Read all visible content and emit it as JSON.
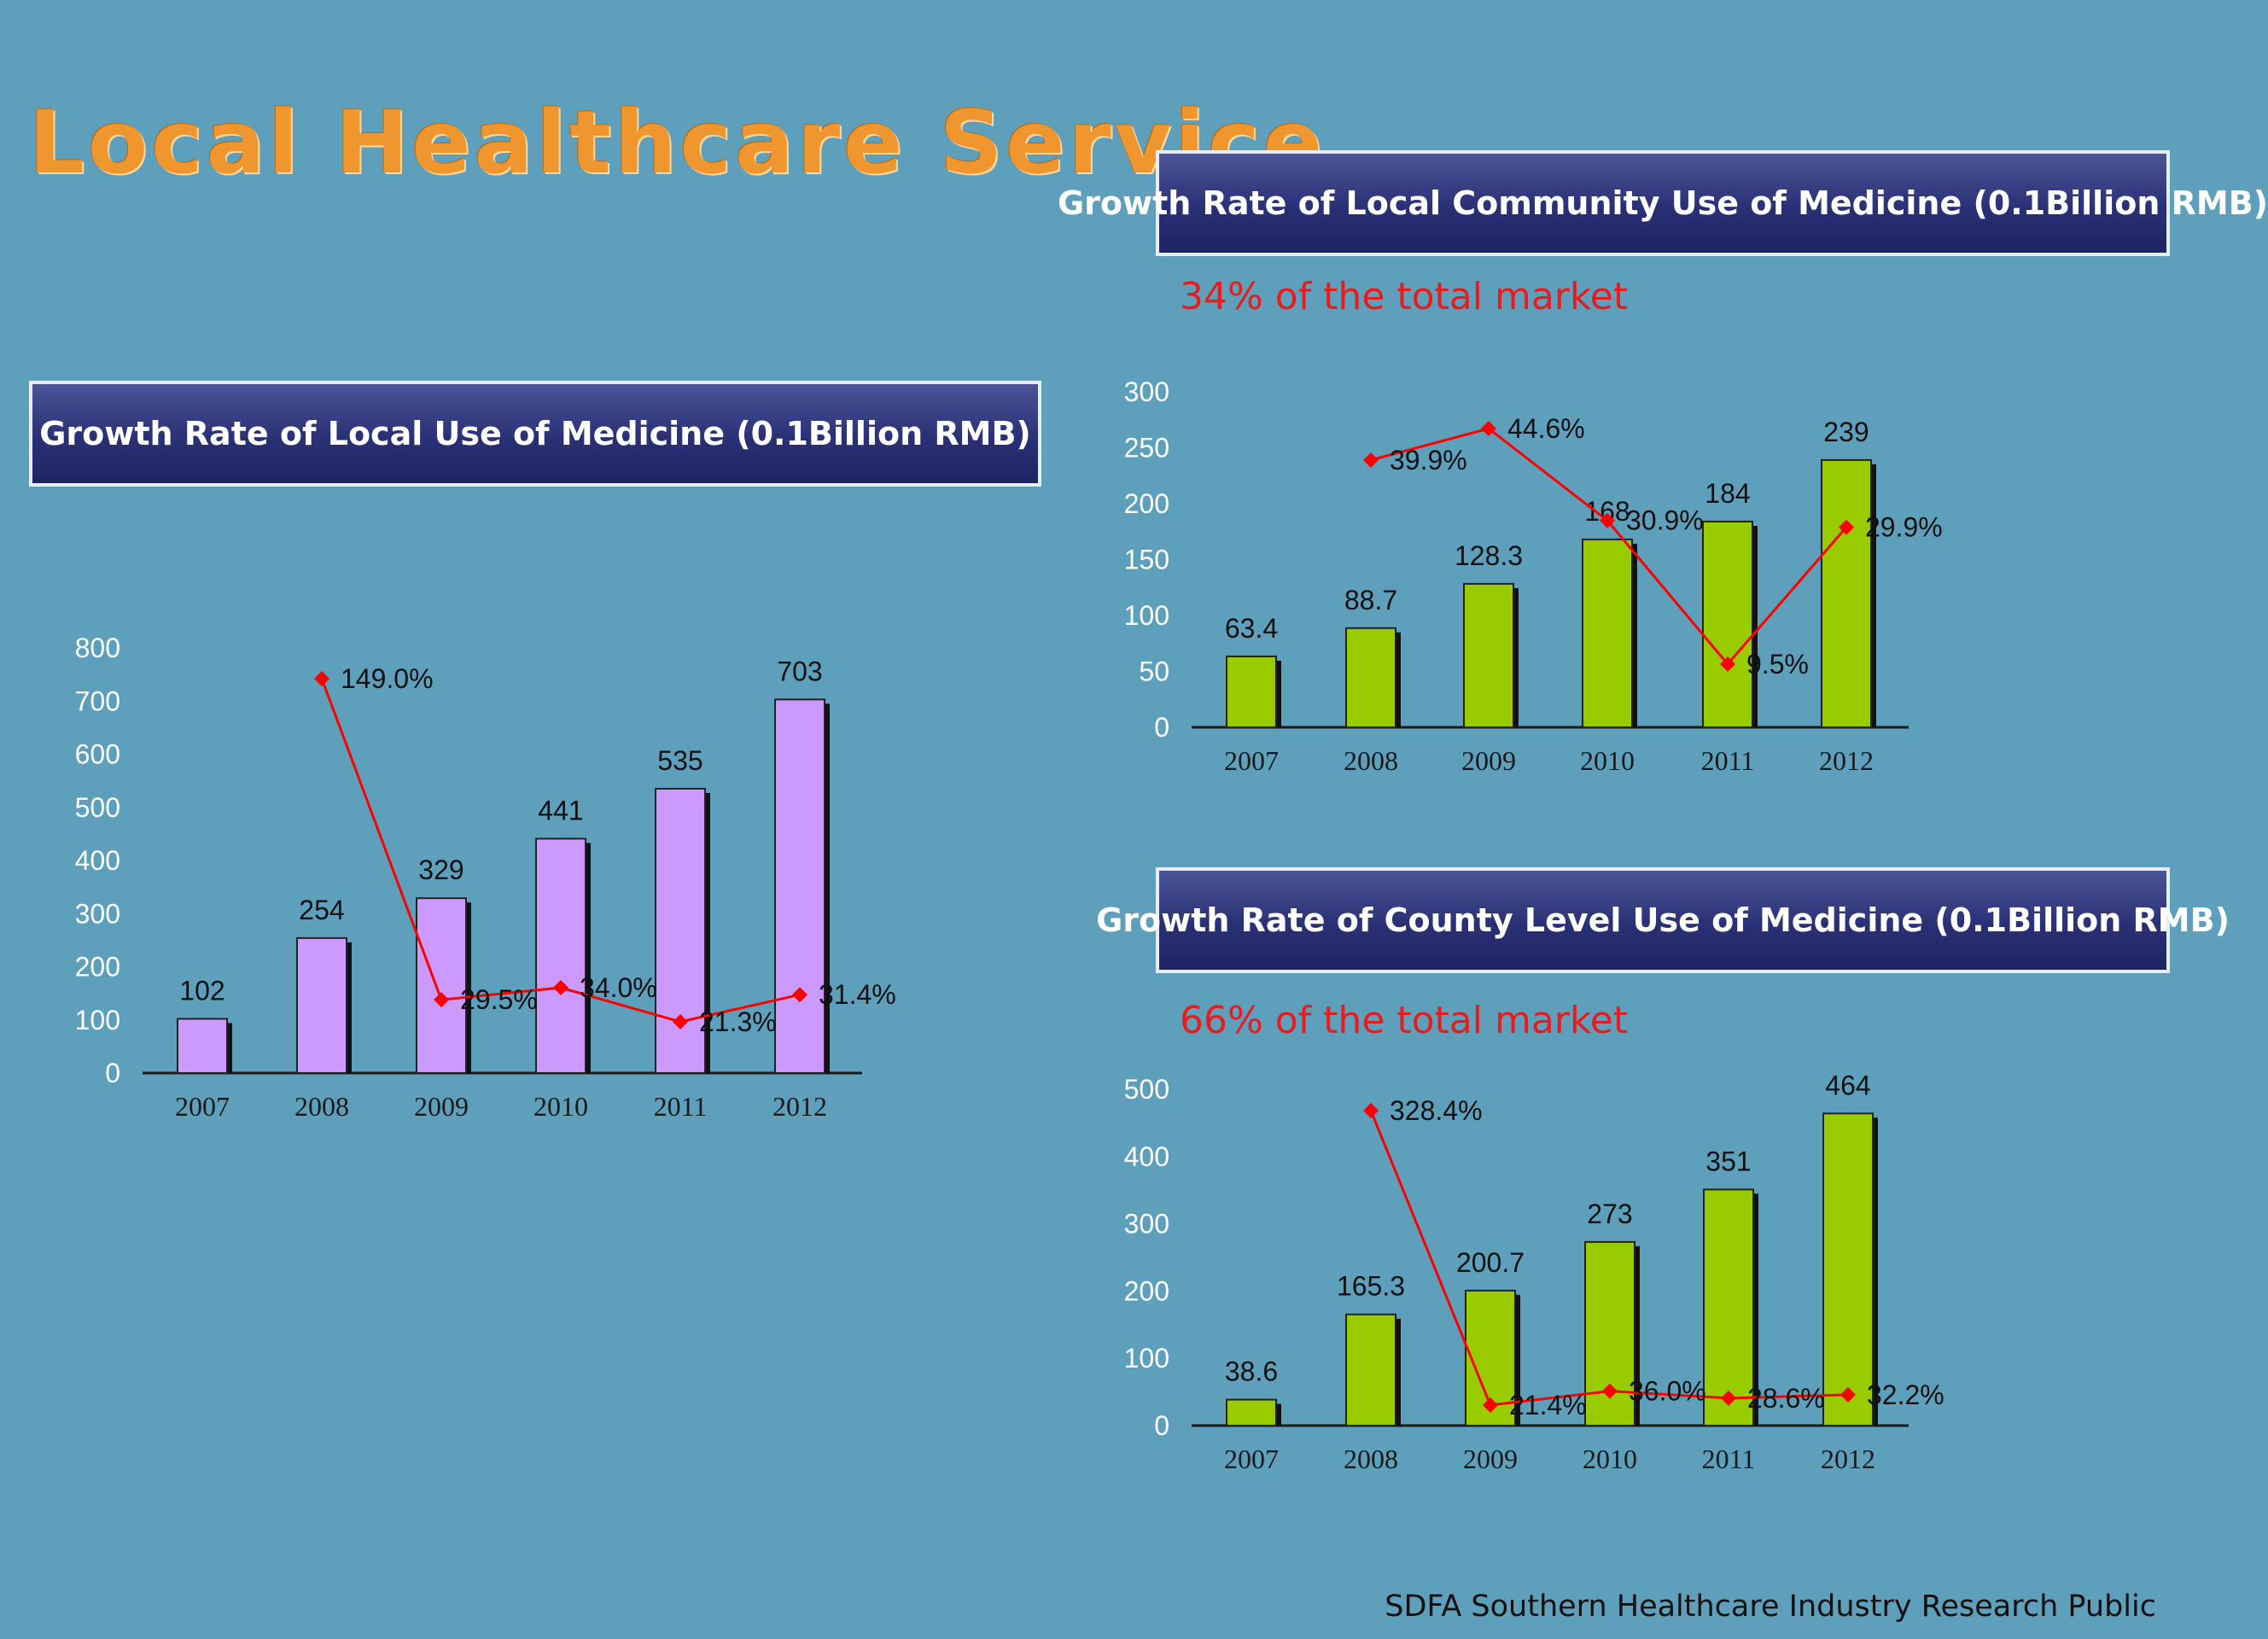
{
  "title": "Local Healthcare Service",
  "footer": "SDFA Southern Healthcare Industry Research Public",
  "colors": {
    "background": "#5e9fbb",
    "title": "#f0962e",
    "header_fill": "#2a3075",
    "purple_bar": "#cc99ff",
    "green_bar": "#99cc00",
    "growth_line": "#ff0000",
    "note_text": "#e81c1c"
  },
  "chart_data": [
    {
      "type": "bar",
      "title": "Growth Rate of Local Use of Medicine  (0.1Billion RMB)",
      "categories": [
        "2007",
        "2008",
        "2009",
        "2010",
        "2011",
        "2012"
      ],
      "values": [
        102,
        254,
        329,
        441,
        535,
        703
      ],
      "value_labels": [
        "102",
        "254",
        "329",
        "441",
        "535",
        "703"
      ],
      "ylim": [
        0,
        800
      ],
      "yticks": [
        0,
        100,
        200,
        300,
        400,
        500,
        600,
        700,
        800
      ],
      "bar_color": "#cc99ff",
      "growth_rate": {
        "type": "line",
        "values": [
          null,
          149.0,
          29.5,
          34.0,
          21.3,
          31.4
        ],
        "labels": [
          "",
          "149.0%",
          "29.5%",
          "34.0%",
          "21.3%",
          "31.4%"
        ],
        "color": "#ff0000"
      },
      "grid": false
    },
    {
      "type": "bar",
      "title": "Growth Rate of Local Community Use of Medicine (0.1Billion RMB)",
      "note": "34% of  the total market",
      "categories": [
        "2007",
        "2008",
        "2009",
        "2010",
        "2011",
        "2012"
      ],
      "values": [
        63.4,
        88.7,
        128.3,
        168,
        184,
        239
      ],
      "value_labels": [
        "63.4",
        "88.7",
        "128.3",
        "168",
        "184",
        "239"
      ],
      "ylim": [
        0,
        300
      ],
      "yticks": [
        0,
        50,
        100,
        150,
        200,
        250,
        300
      ],
      "bar_color": "#99cc00",
      "growth_rate": {
        "type": "line",
        "values": [
          null,
          39.9,
          44.6,
          30.9,
          9.5,
          29.9
        ],
        "labels": [
          "",
          "39.9%",
          "44.6%",
          "30.9%",
          "9.5%",
          "29.9%"
        ],
        "color": "#ff0000"
      },
      "grid": false
    },
    {
      "type": "bar",
      "title": "Growth Rate of County Level Use of Medicine (0.1Billion RMB)",
      "note": "66% of  the total market",
      "categories": [
        "2007",
        "2008",
        "2009",
        "2010",
        "2011",
        "2012"
      ],
      "values": [
        38.6,
        165.3,
        200.7,
        273,
        351,
        464
      ],
      "value_labels": [
        "38.6",
        "165.3",
        "200.7",
        "273",
        "351",
        "464"
      ],
      "ylim": [
        0,
        500
      ],
      "yticks": [
        0,
        100,
        200,
        300,
        400,
        500
      ],
      "bar_color": "#99cc00",
      "growth_rate": {
        "type": "line",
        "values": [
          null,
          328.4,
          21.4,
          36.0,
          28.6,
          32.2
        ],
        "labels": [
          "",
          "328.4%",
          "21.4%",
          "36.0%",
          "28.6%",
          "32.2%"
        ],
        "color": "#ff0000"
      },
      "grid": false
    }
  ]
}
